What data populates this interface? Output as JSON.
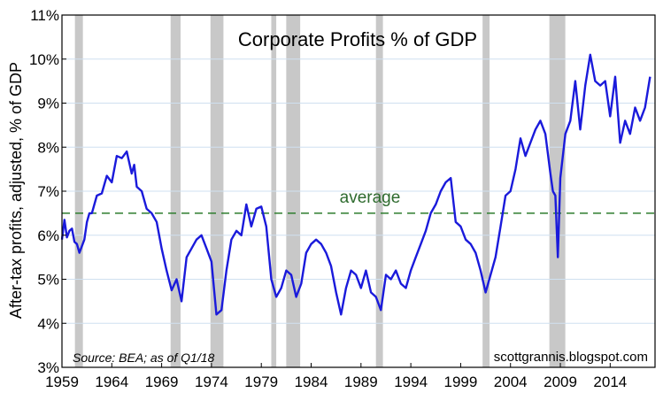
{
  "chart_data": {
    "type": "line",
    "title": "Corporate Profits % of GDP",
    "ylabel": "After-tax profits, adjusted, % of GDP",
    "xlabel": "",
    "source": "Source: BEA; as of Q1/18",
    "credit": "scottgrannis.blogspot.com",
    "average_label": "average",
    "average_value": 6.5,
    "xlim": [
      1959,
      2018.5
    ],
    "ylim": [
      3,
      11
    ],
    "x_ticks": [
      "1959",
      "1964",
      "1969",
      "1974",
      "1979",
      "1984",
      "1989",
      "1994",
      "1999",
      "2004",
      "2009",
      "2014"
    ],
    "y_ticks": [
      "3%",
      "4%",
      "5%",
      "6%",
      "7%",
      "8%",
      "9%",
      "10%",
      "11%"
    ],
    "grid": "horizontal",
    "colors": {
      "line": "#1a1adb",
      "average": "#2e7d2e",
      "recession": "#c8c8c8"
    },
    "recessions": [
      [
        1960.3,
        1961.1
      ],
      [
        1969.9,
        1970.9
      ],
      [
        1973.9,
        1975.2
      ],
      [
        1980.0,
        1980.5
      ],
      [
        1981.5,
        1982.9
      ],
      [
        1990.5,
        1991.2
      ],
      [
        2001.2,
        2001.9
      ],
      [
        2007.9,
        2009.5
      ]
    ],
    "series": [
      {
        "x": [
          1959.0,
          1959.25,
          1959.5,
          1959.75,
          1960.0,
          1960.25,
          1960.5,
          1960.75,
          1961.0,
          1961.25,
          1961.5,
          1961.75,
          1962.0,
          1962.5,
          1963.0,
          1963.5,
          1964.0,
          1964.5,
          1965.0,
          1965.5,
          1966.0,
          1966.25,
          1966.5,
          1967.0,
          1967.5,
          1968.0,
          1968.5,
          1969.0,
          1969.5,
          1970.0,
          1970.5,
          1971.0,
          1971.5,
          1972.0,
          1972.5,
          1973.0,
          1973.5,
          1974.0,
          1974.5,
          1975.0,
          1975.5,
          1976.0,
          1976.5,
          1977.0,
          1977.5,
          1978.0,
          1978.5,
          1979.0,
          1979.5,
          1980.0,
          1980.5,
          1981.0,
          1981.5,
          1982.0,
          1982.5,
          1983.0,
          1983.5,
          1984.0,
          1984.5,
          1985.0,
          1985.5,
          1986.0,
          1986.5,
          1987.0,
          1987.5,
          1988.0,
          1988.5,
          1989.0,
          1989.5,
          1990.0,
          1990.5,
          1991.0,
          1991.5,
          1992.0,
          1992.5,
          1993.0,
          1993.5,
          1994.0,
          1994.5,
          1995.0,
          1995.5,
          1996.0,
          1996.5,
          1997.0,
          1997.5,
          1998.0,
          1998.5,
          1999.0,
          1999.5,
          2000.0,
          2000.5,
          2001.0,
          2001.5,
          2002.0,
          2002.5,
          2003.0,
          2003.5,
          2004.0,
          2004.5,
          2005.0,
          2005.5,
          2006.0,
          2006.5,
          2007.0,
          2007.5,
          2008.0,
          2008.25,
          2008.5,
          2008.75,
          2009.0,
          2009.5,
          2010.0,
          2010.5,
          2011.0,
          2011.5,
          2012.0,
          2012.5,
          2013.0,
          2013.5,
          2014.0,
          2014.5,
          2015.0,
          2015.5,
          2016.0,
          2016.5,
          2017.0,
          2017.5,
          2018.0
        ],
        "y": [
          5.9,
          6.35,
          5.95,
          6.1,
          6.15,
          5.85,
          5.8,
          5.6,
          5.75,
          5.9,
          6.3,
          6.5,
          6.5,
          6.9,
          6.95,
          7.35,
          7.2,
          7.8,
          7.75,
          7.9,
          7.4,
          7.6,
          7.1,
          7.0,
          6.6,
          6.5,
          6.3,
          5.7,
          5.2,
          4.75,
          5.0,
          4.5,
          5.5,
          5.7,
          5.9,
          6.0,
          5.7,
          5.4,
          4.2,
          4.3,
          5.2,
          5.9,
          6.1,
          6.0,
          6.7,
          6.2,
          6.6,
          6.65,
          6.2,
          5.0,
          4.6,
          4.8,
          5.2,
          5.1,
          4.6,
          4.9,
          5.6,
          5.8,
          5.9,
          5.8,
          5.6,
          5.3,
          4.7,
          4.2,
          4.8,
          5.2,
          5.1,
          4.8,
          5.2,
          4.7,
          4.6,
          4.3,
          5.1,
          5.0,
          5.2,
          4.9,
          4.8,
          5.2,
          5.5,
          5.8,
          6.1,
          6.5,
          6.7,
          7.0,
          7.2,
          7.3,
          6.3,
          6.2,
          5.9,
          5.8,
          5.6,
          5.2,
          4.7,
          5.1,
          5.5,
          6.2,
          6.9,
          7.0,
          7.5,
          8.2,
          7.8,
          8.1,
          8.4,
          8.6,
          8.3,
          7.4,
          7.0,
          6.9,
          5.5,
          7.3,
          8.3,
          8.6,
          9.5,
          8.4,
          9.4,
          10.1,
          9.5,
          9.4,
          9.5,
          8.7,
          9.6,
          8.1,
          8.6,
          8.3,
          8.9,
          8.6,
          8.9,
          9.6
        ]
      }
    ]
  }
}
